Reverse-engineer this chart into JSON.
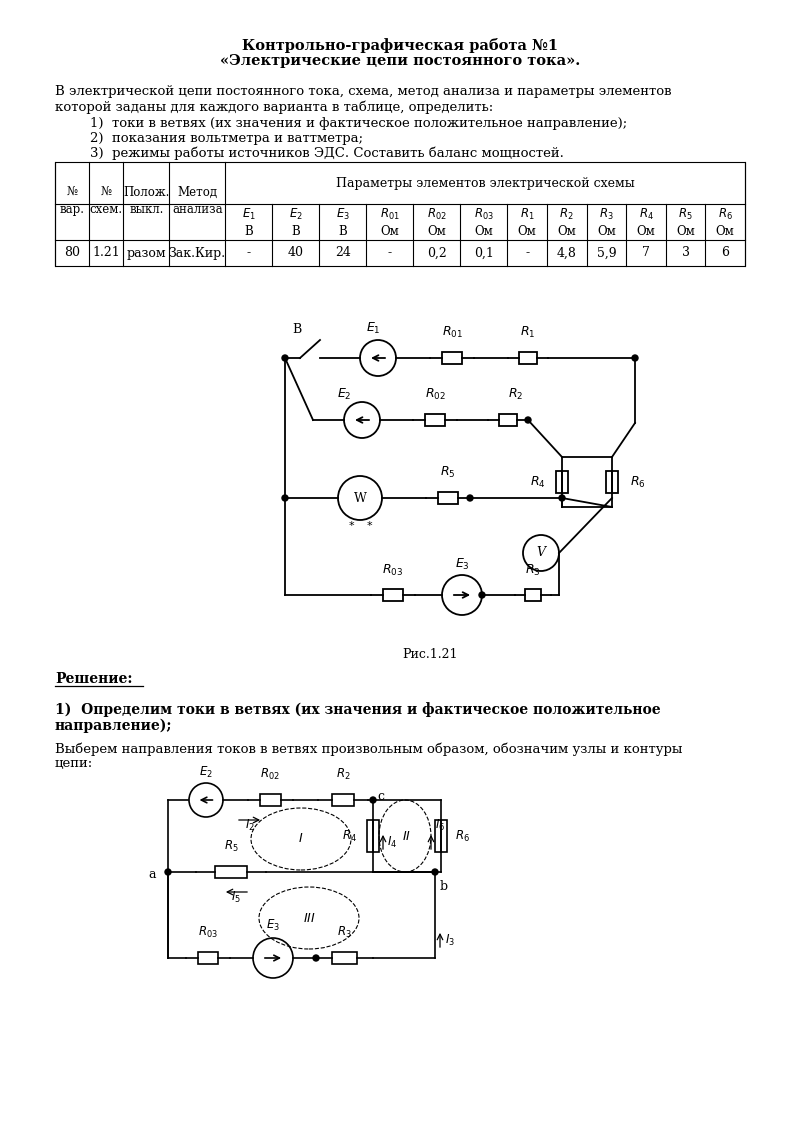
{
  "title_line1": "Контрольно-графическая работа №1",
  "title_line2": "«Электрические цепи постоянного тока».",
  "intro_line1": "В электрической цепи постоянного тока, схема, метод анализа и параметры элементов",
  "intro_line2": "которой заданы для каждого варианта в таблице, определить:",
  "list_item1": "1)  токи в ветвях (их значения и фактическое положительное направление);",
  "list_item2": "2)  показания вольтметра и ваттметра;",
  "list_item3": "3)  режимы работы источников ЭДС. Составить баланс мощностей.",
  "fig_caption": "Рис.1.21",
  "solution_label": "Решение:",
  "section1_line1": "1)  Определим токи в ветвях (их значения и фактическое положительное",
  "section1_line2": "направление);",
  "section1_text1": "Выберем направления токов в ветвях произвольным образом, обозначим узлы и контуры",
  "section1_text2": "цепи:",
  "data_vals": [
    "80",
    "1.21",
    "разом",
    "Зак.Кир.",
    "-",
    "40",
    "24",
    "-",
    "0,2",
    "0,1",
    "-",
    "4,8",
    "5,9",
    "7",
    "3",
    "6"
  ],
  "bg_color": "#ffffff",
  "text_color": "#000000"
}
